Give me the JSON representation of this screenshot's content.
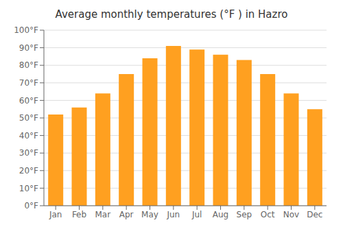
{
  "chart_data": {
    "type": "bar",
    "title": "Average monthly temperatures (°F ) in Hazro",
    "categories": [
      "Jan",
      "Feb",
      "Mar",
      "Apr",
      "May",
      "Jun",
      "Jul",
      "Aug",
      "Sep",
      "Oct",
      "Nov",
      "Dec"
    ],
    "values": [
      52,
      56,
      64,
      75,
      84,
      91,
      89,
      86,
      83,
      75,
      64,
      55
    ],
    "color": "#FFA020",
    "ylim": [
      0,
      100
    ],
    "yticks": [
      {
        "value": 0,
        "label": "0°F"
      },
      {
        "value": 10,
        "label": "10°F"
      },
      {
        "value": 20,
        "label": "20°F"
      },
      {
        "value": 30,
        "label": "30°F"
      },
      {
        "value": 40,
        "label": "40°F"
      },
      {
        "value": 50,
        "label": "50°F"
      },
      {
        "value": 60,
        "label": "60°F"
      },
      {
        "value": 70,
        "label": "70°F"
      },
      {
        "value": 80,
        "label": "80°F"
      },
      {
        "value": 90,
        "label": "90°F"
      },
      {
        "value": 100,
        "label": "100°F"
      }
    ],
    "grid": true
  }
}
